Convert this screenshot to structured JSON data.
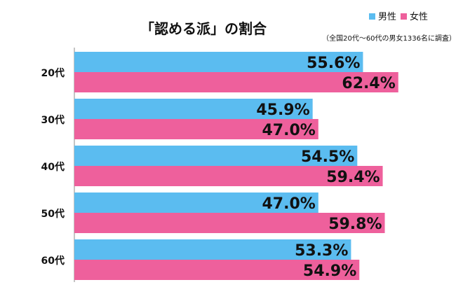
{
  "chart_data": {
    "type": "bar",
    "orientation": "horizontal",
    "title": "「認める派」の割合",
    "note": "（全国20代〜60代の男女1336名に調査）",
    "categories": [
      "20代",
      "30代",
      "40代",
      "50代",
      "60代"
    ],
    "series": [
      {
        "name": "男性",
        "values": [
          55.6,
          45.9,
          54.5,
          47.0,
          53.3
        ],
        "labels": [
          "55.6%",
          "45.9%",
          "54.5%",
          "47.0%",
          "53.3%"
        ],
        "color": "#5bbcf0"
      },
      {
        "name": "女性",
        "values": [
          62.4,
          47.0,
          59.4,
          59.8,
          54.9
        ],
        "labels": [
          "62.4%",
          "47.0%",
          "59.4%",
          "59.8%",
          "54.9%"
        ],
        "color": "#ee609c"
      }
    ],
    "xlim": [
      0,
      100
    ],
    "grid": false,
    "legend_position": "top-right"
  }
}
